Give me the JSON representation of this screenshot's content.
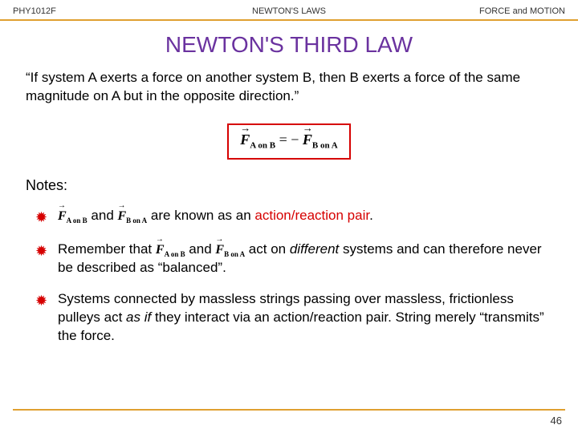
{
  "header": {
    "left": "PHY1012F",
    "center": "NEWTON'S LAWS",
    "right": "FORCE and MOTION"
  },
  "title": "NEWTON'S THIRD LAW",
  "quote": "“If system A exerts a force on another system B, then B exerts a force of the same magnitude on A but in the opposite direction.”",
  "equation": {
    "lhs_sym": "F",
    "lhs_sub": "A on B",
    "rhs_sym": "F",
    "rhs_sub": "B on A",
    "join": " = −"
  },
  "notes_heading": "Notes:",
  "bullets": {
    "b1": {
      "and": " and ",
      "tail": " are known as an ",
      "accent": "action/reaction pair",
      "end": "."
    },
    "b2": {
      "lead": "Remember that ",
      "and": " and ",
      "mid": " act on ",
      "ital": "different",
      "tail": " systems and can therefore never be described as “balanced”."
    },
    "b3": {
      "p1": "Systems connected by massless strings passing over massless, frictionless pulleys act ",
      "ital": "as if",
      "p2": " they interact via an action/reaction pair. String merely “transmits” the force."
    }
  },
  "page_number": "46",
  "colors": {
    "title": "#6a329f",
    "rule": "#e0a030",
    "accent": "#d60000"
  }
}
